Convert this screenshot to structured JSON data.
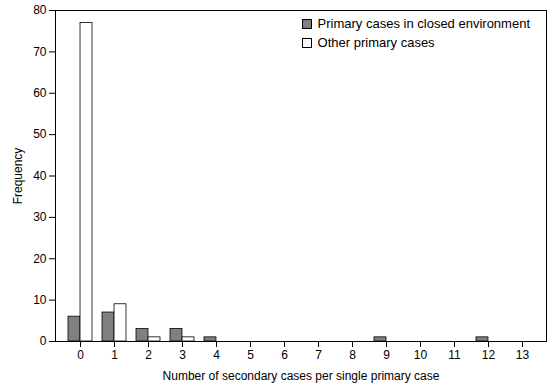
{
  "chart_data": {
    "type": "bar",
    "x_label": "Number of secondary cases per single primary case",
    "y_label": "Frequency",
    "categories": [
      0,
      1,
      2,
      3,
      4,
      5,
      6,
      7,
      8,
      9,
      10,
      11,
      12,
      13
    ],
    "series": [
      {
        "name": "Primary cases in closed environment",
        "color": "#808080",
        "values": [
          6,
          7,
          3,
          3,
          1,
          0,
          0,
          0,
          0,
          1,
          0,
          0,
          1,
          0
        ]
      },
      {
        "name": "Other primary cases",
        "color": "#ffffff",
        "values": [
          77,
          9,
          1,
          1,
          0,
          0,
          0,
          0,
          0,
          0,
          0,
          0,
          0,
          0
        ]
      }
    ],
    "ylim": [
      0,
      80
    ],
    "yticks": [
      0,
      10,
      20,
      30,
      40,
      50,
      60,
      70,
      80
    ],
    "grid": false,
    "legend": "upper right"
  }
}
